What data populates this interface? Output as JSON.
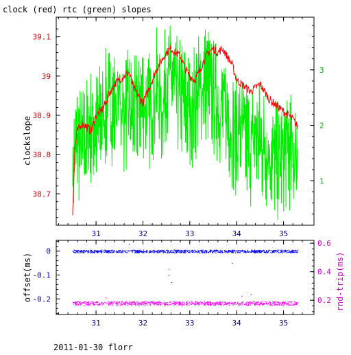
{
  "page": {
    "title": "clock (red) rtc (green) slopes",
    "footer": "2011-01-30 florr"
  },
  "colors": {
    "clock": "#ff0000",
    "rtc": "#00ee00",
    "offset": "#0000ff",
    "roundtrip": "#ff00ff",
    "frame": "#000000"
  },
  "chart_data": [
    {
      "type": "line",
      "title": "clock (red) rtc (green) slopes",
      "xlabel": "",
      "ylabel": "clockslope",
      "x_ticks": [
        31,
        32,
        33,
        34,
        35
      ],
      "xlim": [
        30.15,
        35.65
      ],
      "ylim_left": [
        38.62,
        39.15
      ],
      "ylim_right": [
        0.2,
        3.95
      ],
      "y_ticks_left": [
        38.7,
        38.8,
        38.9,
        39,
        39.1
      ],
      "y_tick_labels_left": [
        "38.7",
        "38.8",
        "38.9",
        "39",
        "39.1"
      ],
      "y_ticks_right": [
        1,
        2,
        3
      ],
      "y_tick_labels_right": [
        "1",
        "2",
        "3"
      ],
      "grid": false,
      "series": [
        {
          "name": "clock",
          "axis": "left",
          "color": "#ff0000",
          "x": [
            30.5,
            30.55,
            30.6,
            30.7,
            30.8,
            30.9,
            31.0,
            31.1,
            31.2,
            31.3,
            31.4,
            31.5,
            31.6,
            31.7,
            31.8,
            31.9,
            32.0,
            32.1,
            32.2,
            32.3,
            32.4,
            32.5,
            32.6,
            32.7,
            32.8,
            32.9,
            33.0,
            33.1,
            33.2,
            33.3,
            33.4,
            33.5,
            33.6,
            33.7,
            33.8,
            33.9,
            34.0,
            34.1,
            34.2,
            34.3,
            34.4,
            34.5,
            34.6,
            34.7,
            34.8,
            34.9,
            35.0,
            35.1,
            35.2,
            35.3
          ],
          "y": [
            38.65,
            38.82,
            38.86,
            38.88,
            38.87,
            38.86,
            38.9,
            38.91,
            38.93,
            38.96,
            38.98,
            38.99,
            39.0,
            39.01,
            38.97,
            38.95,
            38.93,
            38.96,
            38.99,
            39.02,
            39.04,
            39.06,
            39.07,
            39.06,
            39.05,
            39.02,
            39.0,
            38.99,
            39.01,
            39.04,
            39.06,
            39.07,
            39.06,
            39.07,
            39.05,
            39.03,
            38.99,
            38.98,
            38.97,
            38.96,
            38.97,
            38.98,
            38.96,
            38.94,
            38.93,
            38.92,
            38.91,
            38.9,
            38.89,
            38.87
          ]
        },
        {
          "name": "rtc",
          "axis": "right",
          "color": "#00ee00",
          "x": [
            30.5,
            30.6,
            30.7,
            30.8,
            30.9,
            31.0,
            31.1,
            31.2,
            31.3,
            31.4,
            31.5,
            31.6,
            31.7,
            31.8,
            31.9,
            32.0,
            32.1,
            32.2,
            32.3,
            32.4,
            32.5,
            32.6,
            32.7,
            32.8,
            32.9,
            33.0,
            33.1,
            33.2,
            33.3,
            33.4,
            33.5,
            33.6,
            33.7,
            33.8,
            33.9,
            34.0,
            34.1,
            34.2,
            34.3,
            34.4,
            34.5,
            34.6,
            34.7,
            34.8,
            34.9,
            35.0,
            35.1,
            35.2,
            35.3
          ],
          "y": [
            1.3,
            1.7,
            1.6,
            1.8,
            2.0,
            1.9,
            2.1,
            2.3,
            2.4,
            2.3,
            2.5,
            2.2,
            2.3,
            2.1,
            2.4,
            2.5,
            2.2,
            2.4,
            2.7,
            2.3,
            2.8,
            2.9,
            2.6,
            2.5,
            2.4,
            2.2,
            2.4,
            2.6,
            2.8,
            2.7,
            2.5,
            2.4,
            2.3,
            2.2,
            1.9,
            1.8,
            1.9,
            1.7,
            1.6,
            1.8,
            1.7,
            1.6,
            1.5,
            1.4,
            1.3,
            1.5,
            1.6,
            1.4,
            1.5
          ]
        }
      ]
    },
    {
      "type": "scatter",
      "title": "",
      "xlabel": "",
      "ylabel": "offset(ms)",
      "ylabel_right": "rnd-trip(ms)",
      "x_ticks": [
        31,
        32,
        33,
        34,
        35
      ],
      "xlim": [
        30.15,
        35.65
      ],
      "ylim_left": [
        -0.265,
        0.045
      ],
      "ylim_right": [
        0.1,
        0.62
      ],
      "y_ticks_left": [
        0,
        -0.1,
        -0.2
      ],
      "y_tick_labels_left": [
        "0",
        "-0.1",
        "-0.2"
      ],
      "y_ticks_right": [
        0.2,
        0.4,
        0.6
      ],
      "y_tick_labels_right": [
        "0.2",
        "0.4",
        "0.6"
      ],
      "grid": false,
      "series": [
        {
          "name": "offset",
          "axis": "left",
          "color": "#0000ff",
          "x_range": [
            30.5,
            35.3
          ],
          "y_level": 0.0,
          "outliers": [
            [
              31.7,
              0.03
            ],
            [
              32.55,
              -0.1
            ],
            [
              32.6,
              -0.13
            ],
            [
              33.9,
              -0.05
            ],
            [
              34.3,
              -0.18
            ]
          ]
        },
        {
          "name": "roundtrip",
          "axis": "right",
          "color": "#ff00ff",
          "x_range": [
            30.5,
            35.3
          ],
          "y_level": 0.18,
          "outliers": [
            [
              32.55,
              0.42
            ],
            [
              31.2,
              0.22
            ],
            [
              34.1,
              0.23
            ]
          ]
        }
      ]
    }
  ]
}
